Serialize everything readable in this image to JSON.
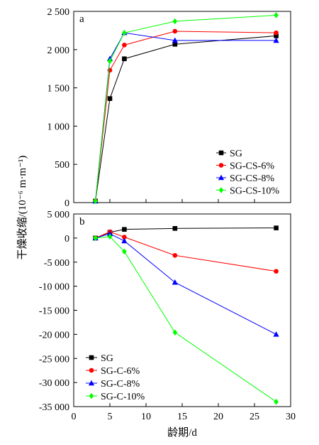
{
  "chart_data": [
    {
      "type": "line",
      "panel_label": "a",
      "xlabel": "龄期/d",
      "ylabel": "干燥收缩/(10⁻⁶ m·m⁻¹)",
      "xlim": [
        0,
        30
      ],
      "ylim": [
        0,
        2500
      ],
      "y_ticks": [
        0,
        500,
        1000,
        1500,
        2000,
        2500
      ],
      "y_tick_labels": [
        "0",
        "500",
        "1 000",
        "1 500",
        "2 000",
        "2 500"
      ],
      "grid": false,
      "legend_position": "center-right",
      "series": [
        {
          "name": "SG",
          "color": "#000000",
          "marker": "square",
          "x": [
            3,
            5,
            7,
            14,
            28
          ],
          "y": [
            20,
            1360,
            1880,
            2070,
            2180
          ]
        },
        {
          "name": "SG-CS-6%",
          "color": "#ff0000",
          "marker": "circle",
          "x": [
            3,
            5,
            7,
            14,
            28
          ],
          "y": [
            20,
            1730,
            2060,
            2240,
            2220
          ]
        },
        {
          "name": "SG-CS-8%",
          "color": "#0000ff",
          "marker": "triangle",
          "x": [
            3,
            5,
            7,
            14,
            28
          ],
          "y": [
            20,
            1880,
            2220,
            2120,
            2120
          ]
        },
        {
          "name": "SG-CS-10%",
          "color": "#00ff00",
          "marker": "diamond",
          "x": [
            3,
            5,
            7,
            14,
            28
          ],
          "y": [
            20,
            1850,
            2220,
            2370,
            2450
          ]
        }
      ]
    },
    {
      "type": "line",
      "panel_label": "b",
      "xlabel": "龄期/d",
      "ylabel": "干燥收缩/(10⁻⁶ m·m⁻¹)",
      "xlim": [
        0,
        30
      ],
      "ylim": [
        -35000,
        5000
      ],
      "x_ticks": [
        0,
        5,
        10,
        15,
        20,
        25,
        30
      ],
      "x_tick_labels": [
        "0",
        "5",
        "10",
        "15",
        "20",
        "25",
        "30"
      ],
      "y_ticks": [
        5000,
        0,
        -5000,
        -10000,
        -15000,
        -20000,
        -25000,
        -30000,
        -35000
      ],
      "y_tick_labels": [
        "5 000",
        "0",
        "-5 000",
        "-10 000",
        "-15 000",
        "-20 000",
        "-25 000",
        "-30 000",
        "-35 000"
      ],
      "grid": false,
      "legend_position": "bottom-left",
      "series": [
        {
          "name": "SG",
          "color": "#000000",
          "marker": "square",
          "x": [
            3,
            5,
            7,
            14,
            28
          ],
          "y": [
            0,
            1200,
            1800,
            2000,
            2100
          ]
        },
        {
          "name": "SG-C-6%",
          "color": "#ff0000",
          "marker": "circle",
          "x": [
            3,
            5,
            7,
            14,
            28
          ],
          "y": [
            0,
            1300,
            200,
            -3600,
            -6900
          ]
        },
        {
          "name": "SG-C-8%",
          "color": "#0000ff",
          "marker": "triangle",
          "x": [
            3,
            5,
            7,
            14,
            28
          ],
          "y": [
            0,
            900,
            -600,
            -9200,
            -20000
          ]
        },
        {
          "name": "SG-C-10%",
          "color": "#00ff00",
          "marker": "diamond",
          "x": [
            3,
            5,
            7,
            14,
            28
          ],
          "y": [
            0,
            300,
            -2800,
            -19600,
            -34000
          ]
        }
      ]
    }
  ]
}
